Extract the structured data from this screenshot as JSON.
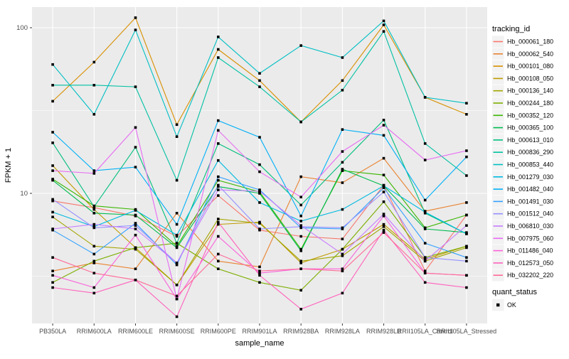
{
  "figure": {
    "background": "#FFFFFF",
    "panel_background": "#EBEBEB",
    "grid_color": "#FFFFFF",
    "tick_text_color": "#4D4D4D",
    "axis_title_color": "#000000",
    "point_color": "#000000",
    "legend_key_background": "#F2F2F2"
  },
  "legend": {
    "tracking_title": "tracking_id",
    "quant_title": "quant_status",
    "quant_items": [
      {
        "label": "OK",
        "marker": "black-square"
      }
    ]
  },
  "chart_data": {
    "type": "line",
    "scale": "log10",
    "title": "",
    "xlabel": "sample_name",
    "ylabel": "FPKM + 1",
    "ylim": [
      1.6,
      135
    ],
    "y_major_ticks": [
      10,
      100
    ],
    "y_tick_labels": [
      "10",
      "100"
    ],
    "y_minor_gridlines": [
      3.162,
      31.62
    ],
    "grid": true,
    "legend_position": "right",
    "point_shape": "black-square",
    "quant_status": "OK",
    "categories": [
      "PB350LA",
      "RRIM600LA",
      "RRIM600LE",
      "RRIM600SE",
      "RRIM600PE",
      "RRIM901LA",
      "RRIM928BA",
      "RRIM928LA",
      "RRIM928LB",
      "RRII105LA_Control",
      "RRII105LA_Stressed"
    ],
    "series": [
      {
        "name": "Hb_000061_180",
        "color": "#F8766D",
        "values": [
          9.0,
          8.2,
          7.3,
          5.5,
          9.7,
          6.0,
          5.5,
          5.3,
          11.2,
          3.4,
          7.4
        ]
      },
      {
        "name": "Hb_000062_540",
        "color": "#EA8331",
        "values": [
          3.4,
          3.8,
          3.5,
          7.6,
          3.9,
          3.6,
          12.6,
          11.6,
          16.3,
          7.8,
          8.8
        ]
      },
      {
        "name": "Hb_000101_080",
        "color": "#D89000",
        "values": [
          36,
          62,
          115,
          26,
          74,
          48,
          27,
          48,
          104,
          38,
          30
        ]
      },
      {
        "name": "Hb_000108_050",
        "color": "#C09B00",
        "values": [
          14.7,
          8.0,
          4.7,
          2.8,
          6.5,
          6.7,
          3.8,
          4.6,
          6.5,
          4.0,
          4.8
        ]
      },
      {
        "name": "Hb_000136_140",
        "color": "#A3A500",
        "values": [
          7.2,
          4.8,
          4.6,
          2.8,
          7.0,
          6.6,
          3.9,
          4.2,
          6.3,
          3.9,
          4.7
        ]
      },
      {
        "name": "Hb_000244_180",
        "color": "#7CAE00",
        "values": [
          2.9,
          3.9,
          4.7,
          5.0,
          3.5,
          2.9,
          2.6,
          4.6,
          8.9,
          4.1,
          4.8
        ]
      },
      {
        "name": "Hb_000352_120",
        "color": "#39B600",
        "values": [
          12.2,
          8.4,
          8.0,
          4.8,
          12.0,
          10.2,
          4.6,
          13.7,
          12.9,
          6.2,
          7.4
        ]
      },
      {
        "name": "Hb_000365_100",
        "color": "#00BB4E",
        "values": [
          12.0,
          7.6,
          7.4,
          4.7,
          11.0,
          10.0,
          4.5,
          14.0,
          11.1,
          6.1,
          5.8
        ]
      },
      {
        "name": "Hb_000613_010",
        "color": "#00BF7D",
        "values": [
          20.2,
          8.3,
          19.0,
          5.0,
          20.0,
          14.9,
          8.5,
          15.4,
          27.7,
          7.6,
          5.7
        ]
      },
      {
        "name": "Hb_000836_290",
        "color": "#00C1A3",
        "values": [
          45,
          45,
          44,
          12,
          66,
          44,
          27,
          42,
          95,
          20,
          12.8
        ]
      },
      {
        "name": "Hb_000853_440",
        "color": "#00BFC4",
        "values": [
          60,
          30,
          97,
          22,
          88,
          53,
          78,
          66,
          110,
          38,
          35
        ]
      },
      {
        "name": "Hb_001279_030",
        "color": "#00BAE0",
        "values": [
          7.7,
          6.3,
          7.9,
          5.6,
          15.8,
          8.8,
          6.8,
          8.0,
          11.1,
          7.7,
          5.7
        ]
      },
      {
        "name": "Hb_001482_040",
        "color": "#00B0F6",
        "values": [
          23.4,
          13.7,
          14.4,
          6.5,
          27.5,
          21.8,
          7.3,
          24.3,
          22.4,
          9.1,
          16.6
        ]
      },
      {
        "name": "Hb_001491_030",
        "color": "#35A2FF",
        "values": [
          6.0,
          4.3,
          6.6,
          3.7,
          12.6,
          10.5,
          6.2,
          6.1,
          10.8,
          5.0,
          4.1
        ]
      },
      {
        "name": "Hb_001512_040",
        "color": "#9590FF",
        "values": [
          9.2,
          6.2,
          6.4,
          3.8,
          11.2,
          6.1,
          6.3,
          6.2,
          10.2,
          4.1,
          3.9
        ]
      },
      {
        "name": "Hb_006810_030",
        "color": "#C77CFF",
        "values": [
          6.1,
          6.5,
          6.1,
          3.8,
          10.5,
          10.3,
          6.4,
          4.3,
          7.5,
          3.9,
          6.4
        ]
      },
      {
        "name": "Hb_007975_060",
        "color": "#E76BF3",
        "values": [
          13.7,
          13.2,
          25.0,
          2.3,
          24.0,
          13.5,
          9.5,
          17.9,
          25.8,
          15.9,
          18.1
        ]
      },
      {
        "name": "Hb_011486_040",
        "color": "#FA62DB",
        "values": [
          3.2,
          2.7,
          5.6,
          2.3,
          5.5,
          3.3,
          3.5,
          3.5,
          7.3,
          3.3,
          3.2
        ]
      },
      {
        "name": "Hb_012573_050",
        "color": "#FF62BC",
        "values": [
          2.7,
          2.5,
          3.0,
          1.8,
          6.7,
          3.2,
          2.0,
          2.5,
          6.0,
          2.9,
          2.7
        ]
      },
      {
        "name": "Hb_032202_220",
        "color": "#FF6A98",
        "values": [
          4.1,
          3.3,
          3.0,
          2.4,
          4.3,
          3.4,
          3.5,
          3.4,
          5.8,
          3.3,
          3.2
        ]
      }
    ]
  }
}
